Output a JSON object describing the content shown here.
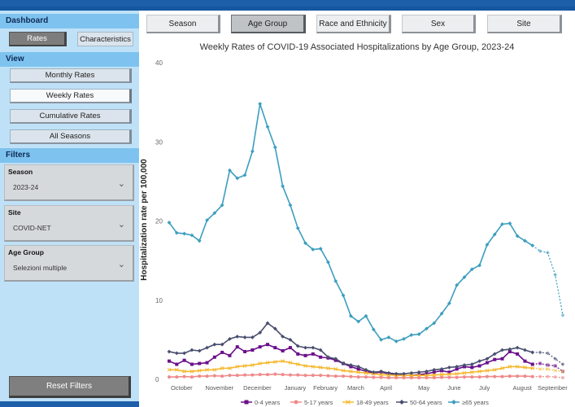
{
  "sidebar": {
    "dashboard_title": "Dashboard",
    "rates_label": "Rates",
    "characteristics_label": "Characteristics",
    "view_title": "View",
    "view_buttons": [
      "Monthly Rates",
      "Weekly Rates",
      "Cumulative Rates",
      "All Seasons"
    ],
    "filters_title": "Filters",
    "filters": [
      {
        "label": "Season",
        "value": "2023-24"
      },
      {
        "label": "Site",
        "value": "COVID-NET"
      },
      {
        "label": "Age Group",
        "value": "Selezioni multiple"
      }
    ],
    "reset_label": "Reset Filters"
  },
  "tabs": [
    "Season",
    "Age Group",
    "Race and Ethnicity",
    "Sex",
    "Site"
  ],
  "chart_data": {
    "type": "line",
    "title": "Weekly Rates of COVID-19 Associated Hospitalizations by Age Group, 2023-24",
    "ylabel": "Hospitalization rate per 100,000",
    "xlabel": "",
    "ylim": [
      0,
      40
    ],
    "yticks": [
      0,
      10,
      20,
      30,
      40
    ],
    "month_labels": [
      "October",
      "November",
      "December",
      "January",
      "February",
      "March",
      "April",
      "May",
      "June",
      "July",
      "August",
      "September"
    ],
    "month_week_index": [
      1,
      6,
      11,
      16,
      20,
      24,
      28,
      33,
      37,
      41,
      46,
      50
    ],
    "weeks": 53,
    "dashed_from_week": 48,
    "series": [
      {
        "name": "0-4 years",
        "color": "#6b0f8b",
        "marker": "square",
        "values": [
          2.3,
          1.9,
          2.4,
          1.9,
          2.0,
          2.1,
          2.8,
          3.4,
          3.0,
          4.1,
          3.5,
          3.7,
          4.1,
          4.4,
          4.0,
          3.6,
          4.0,
          3.2,
          3.0,
          3.2,
          2.8,
          2.7,
          2.4,
          2.0,
          1.6,
          1.3,
          1.0,
          0.8,
          0.9,
          0.7,
          0.6,
          0.5,
          0.5,
          0.6,
          0.7,
          0.9,
          1.1,
          0.9,
          1.3,
          1.6,
          1.5,
          1.7,
          2.1,
          2.5,
          2.6,
          3.5,
          3.2,
          2.3,
          1.9,
          2.0,
          1.8,
          1.7,
          1.0
        ]
      },
      {
        "name": "5-17 years",
        "color": "#ef8a8a",
        "marker": "circle",
        "values": [
          0.3,
          0.3,
          0.35,
          0.3,
          0.4,
          0.4,
          0.45,
          0.4,
          0.5,
          0.5,
          0.55,
          0.55,
          0.6,
          0.6,
          0.65,
          0.6,
          0.55,
          0.55,
          0.5,
          0.5,
          0.5,
          0.45,
          0.4,
          0.4,
          0.35,
          0.3,
          0.3,
          0.25,
          0.25,
          0.2,
          0.2,
          0.2,
          0.2,
          0.2,
          0.2,
          0.2,
          0.25,
          0.25,
          0.25,
          0.3,
          0.3,
          0.3,
          0.35,
          0.35,
          0.35,
          0.4,
          0.4,
          0.4,
          0.35,
          0.35,
          0.35,
          0.3,
          0.2
        ]
      },
      {
        "name": "18-49 years",
        "color": "#f5b82e",
        "marker": "x",
        "values": [
          1.2,
          1.2,
          1.0,
          1.0,
          1.1,
          1.2,
          1.2,
          1.4,
          1.4,
          1.6,
          1.7,
          1.8,
          2.0,
          2.1,
          2.2,
          2.3,
          2.1,
          1.9,
          1.7,
          1.6,
          1.5,
          1.4,
          1.3,
          1.1,
          1.0,
          0.9,
          0.8,
          0.7,
          0.6,
          0.55,
          0.5,
          0.5,
          0.5,
          0.5,
          0.5,
          0.55,
          0.6,
          0.65,
          0.7,
          0.8,
          0.9,
          1.0,
          1.1,
          1.2,
          1.4,
          1.6,
          1.6,
          1.5,
          1.4,
          1.3,
          1.3,
          1.1,
          1.0
        ]
      },
      {
        "name": "50-64 years",
        "color": "#4a4f70",
        "marker": "diamond",
        "values": [
          3.5,
          3.3,
          3.3,
          3.7,
          3.6,
          4.0,
          4.4,
          4.4,
          5.1,
          5.4,
          5.3,
          5.3,
          5.9,
          7.1,
          6.4,
          5.4,
          5.0,
          4.2,
          4.0,
          4.0,
          3.7,
          2.8,
          2.6,
          2.0,
          1.8,
          1.6,
          1.2,
          0.9,
          1.0,
          0.8,
          0.7,
          0.7,
          0.8,
          0.9,
          1.0,
          1.2,
          1.3,
          1.5,
          1.6,
          1.8,
          1.9,
          2.3,
          2.6,
          3.2,
          3.7,
          3.8,
          4.0,
          3.7,
          3.4,
          3.4,
          3.3,
          2.6,
          1.9
        ]
      },
      {
        "name": "≥65 years",
        "color": "#3c9ebf",
        "marker": "diamond",
        "values": [
          19.8,
          18.5,
          18.4,
          18.2,
          17.5,
          20.1,
          21.0,
          22.0,
          26.4,
          25.4,
          25.8,
          28.8,
          34.8,
          31.9,
          29.3,
          24.4,
          22.0,
          19.1,
          17.2,
          16.4,
          16.5,
          14.8,
          12.4,
          10.6,
          8.0,
          7.3,
          8.0,
          6.3,
          5.0,
          5.3,
          4.8,
          5.1,
          5.6,
          5.7,
          6.4,
          7.1,
          8.3,
          9.6,
          11.9,
          12.9,
          13.9,
          14.4,
          17.0,
          18.3,
          19.6,
          19.7,
          18.1,
          17.5,
          16.9,
          16.2,
          16.0,
          13.2,
          8.1
        ]
      }
    ]
  }
}
